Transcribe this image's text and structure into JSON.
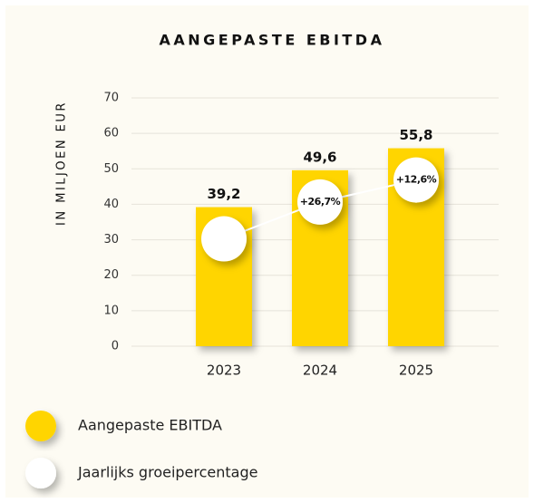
{
  "chart_data": {
    "type": "bar",
    "title": "AANGEPASTE EBITDA",
    "y_label": "IN MILJOEN EUR",
    "categories": [
      "2023",
      "2024",
      "2025"
    ],
    "series": [
      {
        "name": "Aangepaste EBITDA",
        "color": "#ffd500",
        "values": [
          39.2,
          49.6,
          55.8
        ],
        "value_labels": [
          "39,2",
          "49,6",
          "55,8"
        ]
      },
      {
        "name": "Jaarlijks groeipercentage",
        "color": "#ffffff",
        "values": [
          null,
          26.7,
          12.6
        ],
        "value_labels": [
          null,
          "+26,7%",
          "+12,6%"
        ]
      }
    ],
    "ylim": [
      0,
      70
    ],
    "yticks": [
      0,
      10,
      20,
      30,
      40,
      50,
      60,
      70
    ],
    "grid": true
  }
}
